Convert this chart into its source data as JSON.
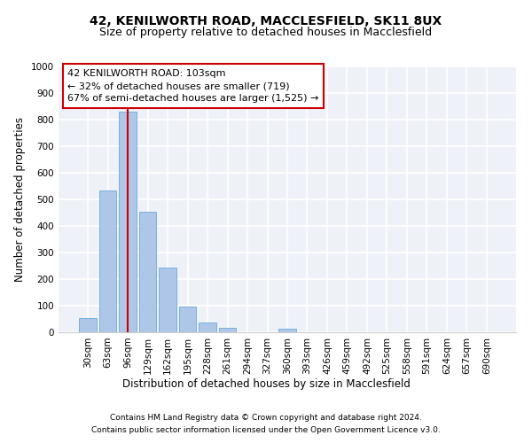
{
  "title_line1": "42, KENILWORTH ROAD, MACCLESFIELD, SK11 8UX",
  "title_line2": "Size of property relative to detached houses in Macclesfield",
  "xlabel": "Distribution of detached houses by size in Macclesfield",
  "ylabel": "Number of detached properties",
  "categories": [
    "30sqm",
    "63sqm",
    "96sqm",
    "129sqm",
    "162sqm",
    "195sqm",
    "228sqm",
    "261sqm",
    "294sqm",
    "327sqm",
    "360sqm",
    "393sqm",
    "426sqm",
    "459sqm",
    "492sqm",
    "525sqm",
    "558sqm",
    "591sqm",
    "624sqm",
    "657sqm",
    "690sqm"
  ],
  "values": [
    53,
    535,
    830,
    455,
    245,
    97,
    37,
    17,
    0,
    0,
    12,
    0,
    0,
    0,
    0,
    0,
    0,
    0,
    0,
    0,
    0
  ],
  "bar_color": "#aec6e8",
  "bar_edge_color": "#5a9fd4",
  "vline_x": 2,
  "vline_color": "#cc0000",
  "annotation_text": "42 KENILWORTH ROAD: 103sqm\n← 32% of detached houses are smaller (719)\n67% of semi-detached houses are larger (1,525) →",
  "annotation_box_color": "#ffffff",
  "annotation_box_edge_color": "#cc0000",
  "ylim": [
    0,
    1000
  ],
  "yticks": [
    0,
    100,
    200,
    300,
    400,
    500,
    600,
    700,
    800,
    900,
    1000
  ],
  "background_color": "#eef2f8",
  "grid_color": "#ffffff",
  "footer_line1": "Contains HM Land Registry data © Crown copyright and database right 2024.",
  "footer_line2": "Contains public sector information licensed under the Open Government Licence v3.0.",
  "title_fontsize": 10,
  "subtitle_fontsize": 9,
  "axis_label_fontsize": 8.5,
  "tick_fontsize": 7.5,
  "annotation_fontsize": 8
}
